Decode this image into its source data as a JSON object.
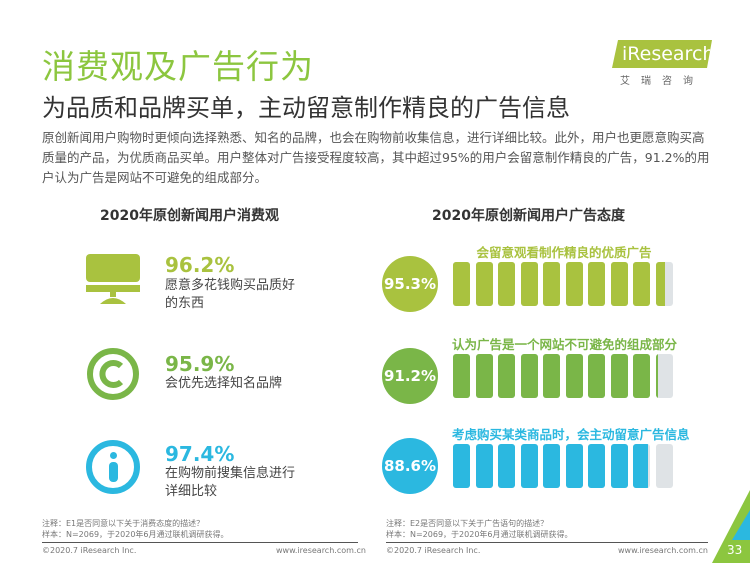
{
  "header": {
    "title": "消费观及广告行为",
    "subtitle": "为品质和品牌买单，主动留意制作精良的广告信息",
    "paragraph": "原创新闻用户购物时更倾向选择熟悉、知名的品牌，也会在购物前收集信息，进行详细比较。此外，用户也更愿意购买高质量的产品，为优质商品买单。用户整体对广告接受程度较高，其中超过95%的用户会留意制作精良的广告，91.2%的用户认为广告是网站不可避免的组成部分。"
  },
  "logo": {
    "text": "iResearch",
    "sub": "艾瑞咨询",
    "color": "#a9c23f"
  },
  "left": {
    "heading": "2020年原创新闻用户消费观",
    "items": [
      {
        "icon": "monitor-icon",
        "percent": "96.2%",
        "text": "愿意多花钱购买品质好的东西",
        "color": "#a9c23f"
      },
      {
        "icon": "copyright-icon",
        "percent": "95.9%",
        "text": "会优先选择知名品牌",
        "color": "#7ab648"
      },
      {
        "icon": "info-icon",
        "percent": "97.4%",
        "text": "在购物前搜集信息进行详细比较",
        "color": "#2bb8e0"
      }
    ],
    "note1": "注释：E1是否同意以下关于消费态度的描述？",
    "note2": "样本：N=2069，于2020年6月通过联机调研获得。",
    "copyright": "©2020.7 iResearch Inc.",
    "url": "www.iresearch.com.cn"
  },
  "right": {
    "heading": "2020年原创新闻用户广告态度",
    "items": [
      {
        "label": "会留意观看制作精良的优质广告",
        "percent": "95.3%",
        "value": 95.3,
        "color": "#a9c23f"
      },
      {
        "label": "认为广告是一个网站不可避免的组成部分",
        "percent": "91.2%",
        "value": 91.2,
        "color": "#7ab648"
      },
      {
        "label": "考虑购买某类商品时，会主动留意广告信息",
        "percent": "88.6%",
        "value": 88.6,
        "color": "#2bb8e0"
      }
    ],
    "note1": "注释：E2是否同意以下关于广告语句的描述？",
    "note2": "样本：N=2069，于2020年6月通过联机调研获得。",
    "copyright": "©2020.7 iResearch Inc.",
    "url": "www.iresearch.com.cn"
  },
  "page_number": "33"
}
